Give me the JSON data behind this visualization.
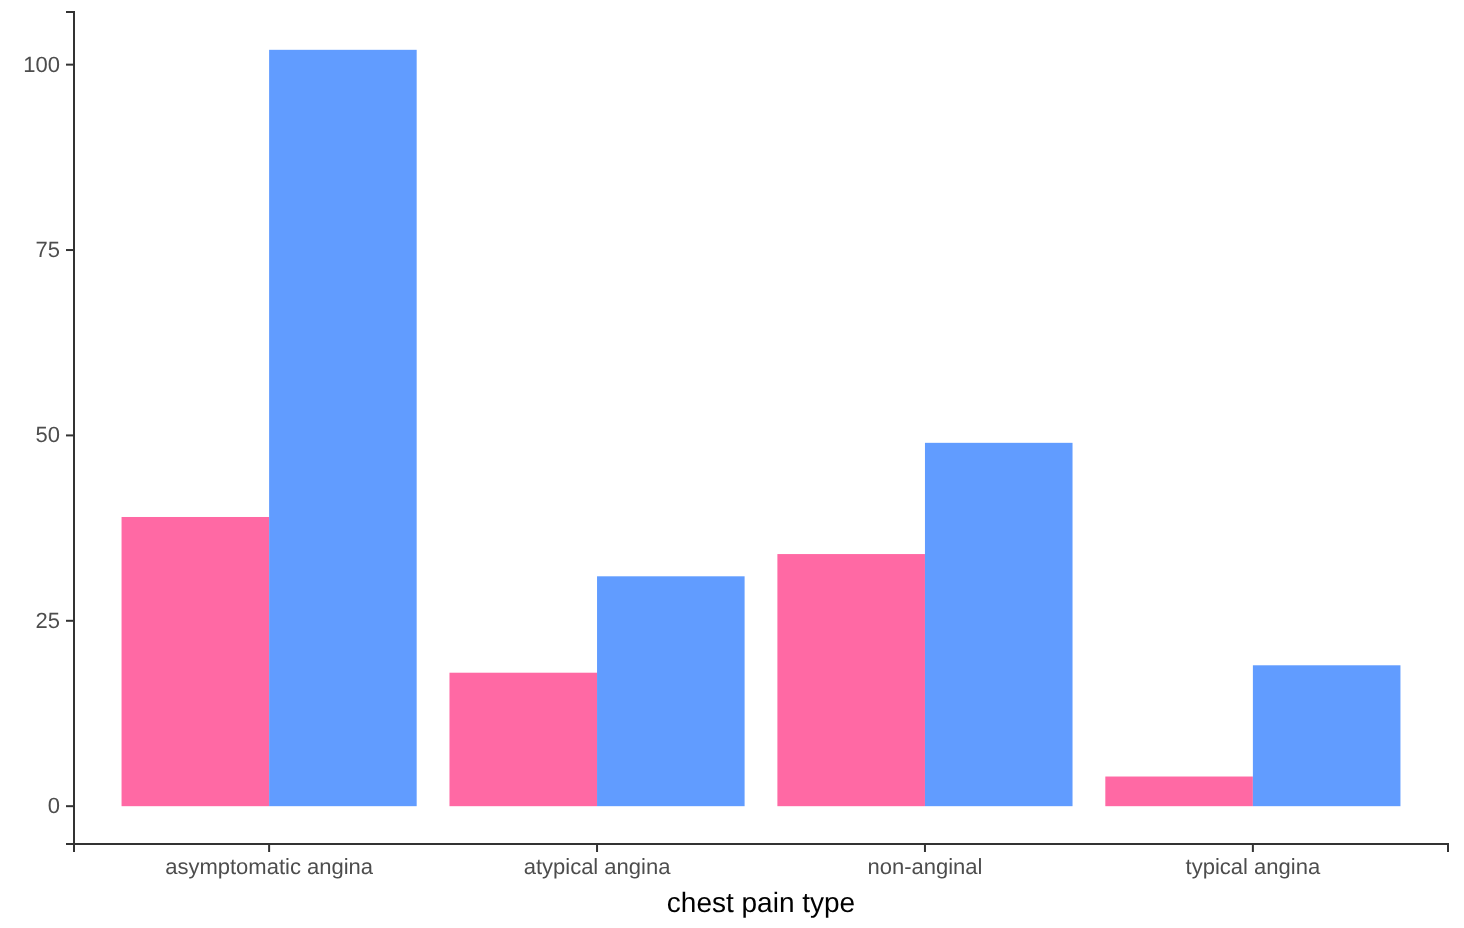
{
  "chart_data": {
    "type": "bar",
    "xlabel": "chest pain type",
    "categories": [
      "asymptomatic angina",
      "atypical angina",
      "non-anginal",
      "typical angina"
    ],
    "series": [
      {
        "color": "#ff69a4",
        "values": [
          39,
          18,
          34,
          4
        ]
      },
      {
        "color": "#619cff",
        "values": [
          102,
          31,
          49,
          19
        ]
      }
    ],
    "ylim": [
      -5.1,
      107.1
    ],
    "yticks": [
      0,
      25,
      50,
      75,
      100
    ],
    "grid": false
  }
}
